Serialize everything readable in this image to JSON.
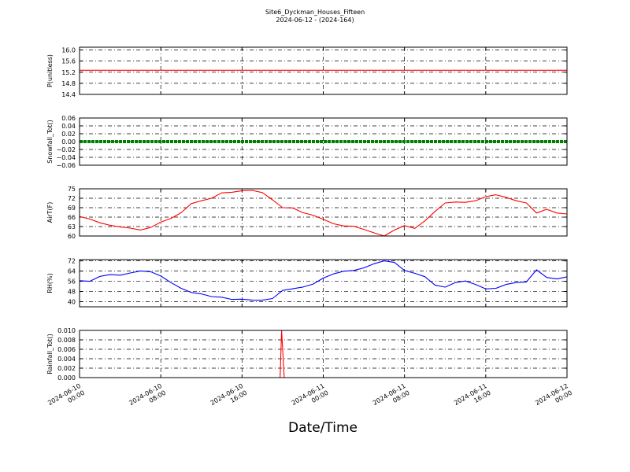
{
  "title": "Site6_Dyckman_Houses_Fifteen",
  "subtitle": "2024-06-12 - (2024-164)",
  "xlabel": "Date/Time",
  "x_ticks": [
    [
      "2024-06-10",
      "00:00"
    ],
    [
      "2024-06-10",
      "08:00"
    ],
    [
      "2024-06-10",
      "16:00"
    ],
    [
      "2024-06-11",
      "00:00"
    ],
    [
      "2024-06-11",
      "08:00"
    ],
    [
      "2024-06-11",
      "16:00"
    ],
    [
      "2024-06-12",
      "00:00"
    ]
  ],
  "chart_data": [
    {
      "type": "line",
      "ylabel": "P(unitless)",
      "ylim": [
        14.4,
        16.1
      ],
      "yticks": [
        "16.0",
        "15.6",
        "15.2",
        "14.8",
        "14.4"
      ],
      "ytick_values": [
        16.0,
        15.6,
        15.2,
        14.8,
        14.4
      ],
      "x_hours": [
        0,
        48
      ],
      "values": [
        15.27,
        15.27
      ],
      "color": "#ff0000",
      "grid": true
    },
    {
      "type": "scatter",
      "ylabel": "Snowfall_Tot()",
      "ylim": [
        -0.06,
        0.06
      ],
      "yticks": [
        "0.06",
        "0.04",
        "0.02",
        "0.00",
        "−0.02",
        "−0.04",
        "−0.06"
      ],
      "ytick_values": [
        0.06,
        0.04,
        0.02,
        0.0,
        -0.02,
        -0.04,
        -0.06
      ],
      "x_hours": [
        0,
        48
      ],
      "values": [
        0,
        0
      ],
      "color": "#008000",
      "grid": true
    },
    {
      "type": "line",
      "ylabel": "AirT(F)",
      "ylim": [
        60,
        75
      ],
      "yticks": [
        "75",
        "72",
        "69",
        "66",
        "63",
        "60"
      ],
      "ytick_values": [
        75,
        72,
        69,
        66,
        63,
        60
      ],
      "x_hours": [
        0,
        1,
        2,
        3,
        4,
        5,
        6,
        7,
        8,
        9,
        10,
        11,
        12,
        13,
        14,
        15,
        16,
        17,
        18,
        19,
        20,
        21,
        22,
        23,
        24,
        25,
        26,
        27,
        28,
        29,
        30,
        31,
        32,
        33,
        34,
        35,
        36,
        37,
        38,
        39,
        40,
        41,
        42,
        43,
        44,
        45,
        46,
        47,
        48
      ],
      "values": [
        66.2,
        65.4,
        64.2,
        63.4,
        62.9,
        62.5,
        61.9,
        62.7,
        64.4,
        65.6,
        67.4,
        70.3,
        71.2,
        72.0,
        73.7,
        73.9,
        74.4,
        74.5,
        73.8,
        71.5,
        69.0,
        68.9,
        67.4,
        66.6,
        65.3,
        63.9,
        63.2,
        63.1,
        62.1,
        61.0,
        60.0,
        61.9,
        63.3,
        62.4,
        64.8,
        67.8,
        70.5,
        70.8,
        70.7,
        71.2,
        72.5,
        73.1,
        72.3,
        71.2,
        70.5,
        67.3,
        68.5,
        67.3,
        67.0
      ],
      "color": "#ff0000",
      "grid": true
    },
    {
      "type": "line",
      "ylabel": "RH(%)",
      "ylim": [
        36,
        73
      ],
      "yticks": [
        "72",
        "64",
        "56",
        "48",
        "40"
      ],
      "ytick_values": [
        72,
        64,
        56,
        48,
        40
      ],
      "x_hours": [
        0,
        1,
        2,
        3,
        4,
        5,
        6,
        7,
        8,
        9,
        10,
        11,
        12,
        13,
        14,
        15,
        16,
        17,
        18,
        19,
        20,
        21,
        22,
        23,
        24,
        25,
        26,
        27,
        28,
        29,
        30,
        31,
        32,
        33,
        34,
        35,
        36,
        37,
        38,
        39,
        40,
        41,
        42,
        43,
        44,
        45,
        46,
        47,
        48
      ],
      "values": [
        56.5,
        56.0,
        59.8,
        61.2,
        60.8,
        62.5,
        64.1,
        63.5,
        60.1,
        55.0,
        50.5,
        47.2,
        46.1,
        44.0,
        43.5,
        41.8,
        42.0,
        41.3,
        41.2,
        42.5,
        48.8,
        50.1,
        51.5,
        53.8,
        58.5,
        61.8,
        63.9,
        64.5,
        66.5,
        69.8,
        72.0,
        70.8,
        64.5,
        62.3,
        59.6,
        53.0,
        51.4,
        55.0,
        56.2,
        53.5,
        50.0,
        50.5,
        53.5,
        55.0,
        55.5,
        65.0,
        59.0,
        57.8,
        59.5
      ],
      "color": "#0000ff",
      "grid": true
    },
    {
      "type": "line",
      "ylabel": "Rainfall_Tot()",
      "ylim": [
        0,
        0.01
      ],
      "yticks": [
        "0.010",
        "0.008",
        "0.006",
        "0.004",
        "0.002",
        "0.000"
      ],
      "ytick_values": [
        0.01,
        0.008,
        0.006,
        0.004,
        0.002,
        0.0
      ],
      "x_hours": [
        0,
        19.75,
        19.9,
        20.15,
        48
      ],
      "values": [
        0,
        0,
        0.01,
        0,
        0
      ],
      "color": "#ff0000",
      "grid": true
    }
  ]
}
